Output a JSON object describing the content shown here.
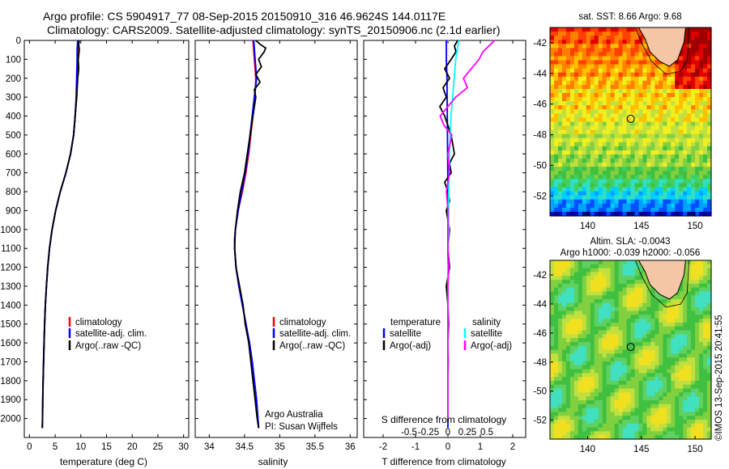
{
  "header": {
    "line1": "Argo profile: CS 5904917_77 08-Sep-2015 20150910_316 46.9624S 144.0117E",
    "line2": "Climatology: CARS2009. Satellite-adjusted climatology: synTS_20150906.nc (2.1d earlier)"
  },
  "depth_ticks": [
    "0",
    "100",
    "200",
    "300",
    "400",
    "500",
    "600",
    "700",
    "800",
    "900",
    "1000",
    "1100",
    "1200",
    "1300",
    "1400",
    "1500",
    "1600",
    "1700",
    "1800",
    "1900",
    "2000"
  ],
  "legend1": {
    "items": [
      "climatology",
      "satellite-adj. clim.",
      "Argo(..raw -QC)"
    ]
  },
  "legend3": {
    "temp_header": "temperature",
    "sal_header": "salinity",
    "temp_items": [
      "satellite",
      "Argo(-adj)"
    ],
    "sal_items": [
      "satellite",
      "Argo(-adj)"
    ]
  },
  "credit": {
    "line1": "Argo Australia",
    "line2": "PI: Susan Wijffels"
  },
  "sst_map": {
    "title": "sat. SST: 8.66 Argo: 9.68",
    "yticks": [
      "-42",
      "-44",
      "-46",
      "-48",
      "-50",
      "-52"
    ],
    "xticks": [
      "140",
      "145",
      "150"
    ]
  },
  "sla_map": {
    "title1": "Altim. SLA: -0.0043",
    "title2": "Argo h1000: -0.039 h2000: -0.056",
    "yticks": [
      "-42",
      "-44",
      "-46",
      "-48",
      "-50",
      "-52"
    ],
    "xticks": [
      "140",
      "145",
      "150"
    ]
  },
  "imos_stamp": "©IMOS 13-Sep-2015 20:41:55",
  "colors": {
    "climatology": "#ff0000",
    "satellite_adj": "#0000ff",
    "argo": "#000000",
    "sal_satellite": "#00ffff",
    "sal_argo": "#ff00ff"
  },
  "chart_data": [
    {
      "type": "line",
      "xlabel": "temperature (deg C)",
      "ylabel": "",
      "xlim": [
        -1,
        31
      ],
      "ylim": [
        2100,
        0
      ],
      "xtick_labels": [
        "0",
        "5",
        "10",
        "15",
        "20",
        "25",
        "30"
      ],
      "series": [
        {
          "name": "climatology",
          "depth": [
            0,
            50,
            100,
            200,
            300,
            400,
            500,
            600,
            700,
            800,
            900,
            1000,
            1100,
            1200,
            1300,
            1400,
            1500,
            1600,
            1700,
            1800,
            1900,
            2000,
            2050
          ],
          "values": [
            9.6,
            9.5,
            9.4,
            9.3,
            9.2,
            8.9,
            8.6,
            8.0,
            7.1,
            6.0,
            5.1,
            4.4,
            3.9,
            3.55,
            3.3,
            3.1,
            2.95,
            2.85,
            2.75,
            2.65,
            2.6,
            2.55,
            2.5
          ]
        },
        {
          "name": "satellite-adj. clim.",
          "depth": [
            0,
            50,
            100,
            200,
            300,
            400,
            500,
            600,
            700,
            800,
            900,
            1000,
            1100,
            1200,
            1300,
            1400,
            1500,
            1600,
            1700,
            1800,
            1900,
            2000,
            2050
          ],
          "values": [
            9.4,
            9.3,
            9.3,
            9.2,
            9.1,
            8.9,
            8.6,
            8.0,
            7.1,
            6.0,
            5.1,
            4.4,
            3.9,
            3.55,
            3.3,
            3.1,
            2.95,
            2.85,
            2.75,
            2.65,
            2.6,
            2.55,
            2.5
          ]
        },
        {
          "name": "Argo(..raw -QC)",
          "depth": [
            0,
            20,
            50,
            100,
            150,
            200,
            300,
            400,
            500,
            600,
            700,
            800,
            900,
            1000,
            1100,
            1200,
            1300,
            1400,
            1500,
            1600,
            1700,
            1800,
            1900,
            2000,
            2050
          ],
          "values": [
            9.7,
            9.6,
            9.7,
            9.5,
            9.6,
            9.4,
            9.2,
            8.9,
            8.6,
            8.0,
            7.1,
            6.0,
            5.1,
            4.4,
            3.9,
            3.55,
            3.3,
            3.1,
            2.95,
            2.85,
            2.75,
            2.65,
            2.6,
            2.55,
            2.5
          ]
        }
      ]
    },
    {
      "type": "line",
      "xlabel": "salinity",
      "ylabel": "",
      "xlim": [
        33.8,
        36.1
      ],
      "ylim": [
        2100,
        0
      ],
      "xtick_labels": [
        "34",
        "34.5",
        "35",
        "35.5",
        "36"
      ],
      "series": [
        {
          "name": "climatology",
          "depth": [
            0,
            100,
            200,
            300,
            400,
            500,
            600,
            700,
            800,
            900,
            1000,
            1050,
            1100,
            1200,
            1300,
            1400,
            1500,
            1600,
            1700,
            1800,
            1900,
            2000,
            2050
          ],
          "values": [
            34.62,
            34.64,
            34.66,
            34.65,
            34.62,
            34.59,
            34.56,
            34.52,
            34.47,
            34.41,
            34.37,
            34.36,
            34.36,
            34.38,
            34.42,
            34.47,
            34.52,
            34.57,
            34.61,
            34.64,
            34.67,
            34.69,
            34.7
          ]
        },
        {
          "name": "satellite-adj. clim.",
          "depth": [
            0,
            100,
            200,
            300,
            400,
            500,
            600,
            700,
            800,
            900,
            1000,
            1050,
            1100,
            1200,
            1300,
            1400,
            1500,
            1600,
            1700,
            1800,
            1900,
            2000,
            2050
          ],
          "values": [
            34.63,
            34.65,
            34.67,
            34.64,
            34.61,
            34.58,
            34.55,
            34.51,
            34.46,
            34.41,
            34.37,
            34.36,
            34.36,
            34.38,
            34.42,
            34.47,
            34.52,
            34.57,
            34.61,
            34.64,
            34.67,
            34.69,
            34.7
          ]
        },
        {
          "name": "Argo(..raw -QC)",
          "depth": [
            0,
            20,
            40,
            60,
            100,
            140,
            180,
            220,
            260,
            300,
            400,
            500,
            600,
            700,
            800,
            900,
            1000,
            1100,
            1200,
            1300,
            1400,
            1500,
            1600,
            1700,
            1800,
            1900,
            2000,
            2050
          ],
          "values": [
            34.66,
            34.72,
            34.8,
            34.78,
            34.7,
            34.74,
            34.66,
            34.72,
            34.64,
            34.66,
            34.62,
            34.58,
            34.54,
            34.5,
            34.44,
            34.4,
            34.37,
            34.36,
            34.38,
            34.43,
            34.48,
            34.51,
            34.56,
            34.59,
            34.62,
            34.65,
            34.68,
            34.7
          ]
        }
      ]
    },
    {
      "type": "line",
      "xlabel": "T difference from climatology",
      "xlabel2": "S difference from climatology",
      "ylabel": "",
      "xlim": [
        -2.6,
        2.4
      ],
      "ylim": [
        2100,
        0
      ],
      "xtick_labels": [
        "-2",
        "-1",
        "0",
        "1",
        "2"
      ],
      "xtick2_labels": [
        "-0.5",
        "-0.25",
        "0",
        "0.25",
        "0.5"
      ],
      "series": [
        {
          "name": "temperature satellite",
          "depth": [
            0,
            100,
            200,
            400,
            600,
            800,
            1000,
            1200,
            1400,
            1600,
            1800,
            2000,
            2050
          ],
          "values": [
            -0.05,
            -0.05,
            -0.03,
            -0.02,
            -0.01,
            0,
            0,
            0,
            0,
            0,
            0,
            0,
            0
          ]
        },
        {
          "name": "temperature Argo(-adj)",
          "depth": [
            0,
            30,
            60,
            100,
            150,
            200,
            250,
            300,
            350,
            400,
            450,
            500,
            550,
            600,
            650,
            700,
            750,
            800,
            850,
            900,
            950,
            1000,
            1100,
            1200,
            1300,
            1400,
            1500,
            1600,
            1700,
            1800,
            1900,
            2000
          ],
          "values": [
            0.3,
            0.2,
            0.25,
            0.1,
            -0.1,
            0.05,
            -0.15,
            -0.05,
            -0.25,
            -0.1,
            0.0,
            0.1,
            0.15,
            0.2,
            0.05,
            0.1,
            -0.1,
            0.0,
            0.05,
            -0.05,
            0.0,
            0.05,
            0.0,
            0.05,
            -0.05,
            0.0,
            0.02,
            0.0,
            0.01,
            0.0,
            0.0,
            0.0
          ]
        },
        {
          "name": "salinity satellite",
          "depth": [
            0,
            50,
            100,
            200,
            300,
            400,
            600,
            800,
            1000,
            1200,
            1400,
            1600,
            1800,
            2000
          ],
          "values": [
            0.14,
            0.12,
            0.1,
            0.08,
            0.06,
            0.04,
            0.02,
            0.01,
            0.01,
            0.0,
            0.0,
            0.0,
            0.0,
            0.0
          ]
        },
        {
          "name": "salinity Argo(-adj)",
          "depth": [
            0,
            20,
            40,
            60,
            100,
            150,
            200,
            250,
            300,
            350,
            400,
            450,
            500,
            600,
            700,
            800,
            900,
            1000,
            1100,
            1200,
            1300,
            1400,
            1500,
            1600,
            1700,
            1800,
            1900,
            2000
          ],
          "values": [
            0.6,
            0.55,
            0.5,
            0.45,
            0.4,
            0.3,
            0.2,
            0.25,
            0.1,
            0.0,
            -0.1,
            -0.05,
            0.05,
            0.0,
            0.02,
            -0.02,
            0.0,
            0.0,
            0.0,
            0.01,
            0.0,
            0.0,
            0.0,
            0.0,
            0.0,
            0.0,
            0.0,
            0.0
          ]
        }
      ]
    }
  ]
}
